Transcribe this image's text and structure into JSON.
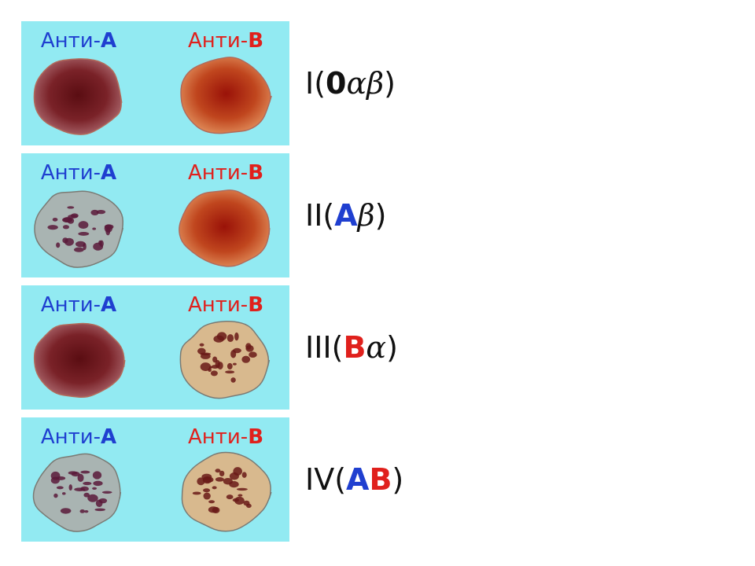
{
  "rows": [
    {
      "anti_a": {
        "prefix": "Анти-",
        "letter": "A"
      },
      "anti_b": {
        "prefix": "Анти-",
        "letter": "B"
      },
      "agglutination": [
        false,
        false
      ],
      "group": [
        {
          "text": "I",
          "color": "#111111"
        },
        {
          "text": "(",
          "color": "#111111"
        },
        {
          "text": "0",
          "color": "#111111"
        },
        {
          "text": "α",
          "color": "#111111",
          "italic": true
        },
        {
          "text": "β",
          "color": "#111111",
          "italic": true
        },
        {
          "text": ")",
          "color": "#111111"
        }
      ]
    },
    {
      "anti_a": {
        "prefix": "Анти-",
        "letter": "A"
      },
      "anti_b": {
        "prefix": "Анти-",
        "letter": "B"
      },
      "agglutination": [
        true,
        false
      ],
      "group": [
        {
          "text": "II",
          "color": "#111111"
        },
        {
          "text": "(",
          "color": "#111111"
        },
        {
          "text": "A",
          "color": "#1f3fd0"
        },
        {
          "text": "β",
          "color": "#111111",
          "italic": true
        },
        {
          "text": ")",
          "color": "#111111"
        }
      ]
    },
    {
      "anti_a": {
        "prefix": "Анти-",
        "letter": "A"
      },
      "anti_b": {
        "prefix": "Анти-",
        "letter": "B"
      },
      "agglutination": [
        false,
        true
      ],
      "group": [
        {
          "text": "III",
          "color": "#111111"
        },
        {
          "text": "(",
          "color": "#111111"
        },
        {
          "text": "B",
          "color": "#e0201c"
        },
        {
          "text": "α",
          "color": "#111111",
          "italic": true
        },
        {
          "text": ")",
          "color": "#111111"
        }
      ]
    },
    {
      "anti_a": {
        "prefix": "Анти-",
        "letter": "A"
      },
      "anti_b": {
        "prefix": "Анти-",
        "letter": "B"
      },
      "agglutination": [
        true,
        true
      ],
      "group": [
        {
          "text": "IV",
          "color": "#111111"
        },
        {
          "text": "(",
          "color": "#111111"
        },
        {
          "text": "A",
          "color": "#1f3fd0"
        },
        {
          "text": "B",
          "color": "#e0201c"
        },
        {
          "text": ")",
          "color": "#111111"
        }
      ]
    }
  ]
}
